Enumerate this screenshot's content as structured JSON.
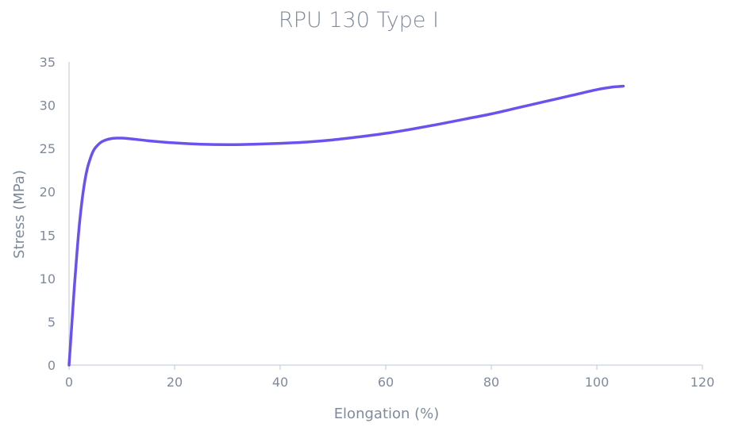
{
  "chart_data": {
    "type": "line",
    "title": "RPU 130 Type I",
    "xlabel": "Elongation (%)",
    "ylabel": "Stress (MPa)",
    "xlim": [
      0,
      120
    ],
    "ylim": [
      0,
      35
    ],
    "x_ticks": [
      0,
      20,
      40,
      60,
      80,
      100,
      120
    ],
    "y_ticks": [
      0,
      5,
      10,
      15,
      20,
      25,
      30,
      35
    ],
    "grid": false,
    "legend": "none",
    "series_color": "#6b52ee",
    "axis_color": "#c9d0dc",
    "text_color": "#7f8a9c",
    "series": [
      {
        "x": [
          0,
          0.5,
          1,
          1.5,
          2,
          2.5,
          3,
          3.5,
          4,
          4.5,
          5,
          6,
          7,
          8,
          9,
          10,
          12,
          15,
          20,
          25,
          30,
          35,
          40,
          45,
          50,
          55,
          60,
          65,
          70,
          75,
          80,
          85,
          90,
          95,
          100,
          103,
          105
        ],
        "y": [
          0,
          4.5,
          9,
          13,
          16.5,
          19.2,
          21.3,
          22.8,
          23.8,
          24.6,
          25.1,
          25.7,
          26.0,
          26.15,
          26.2,
          26.2,
          26.1,
          25.9,
          25.65,
          25.5,
          25.45,
          25.5,
          25.6,
          25.75,
          26.0,
          26.35,
          26.75,
          27.25,
          27.8,
          28.4,
          29.0,
          29.7,
          30.4,
          31.1,
          31.8,
          32.1,
          32.2
        ]
      }
    ]
  }
}
